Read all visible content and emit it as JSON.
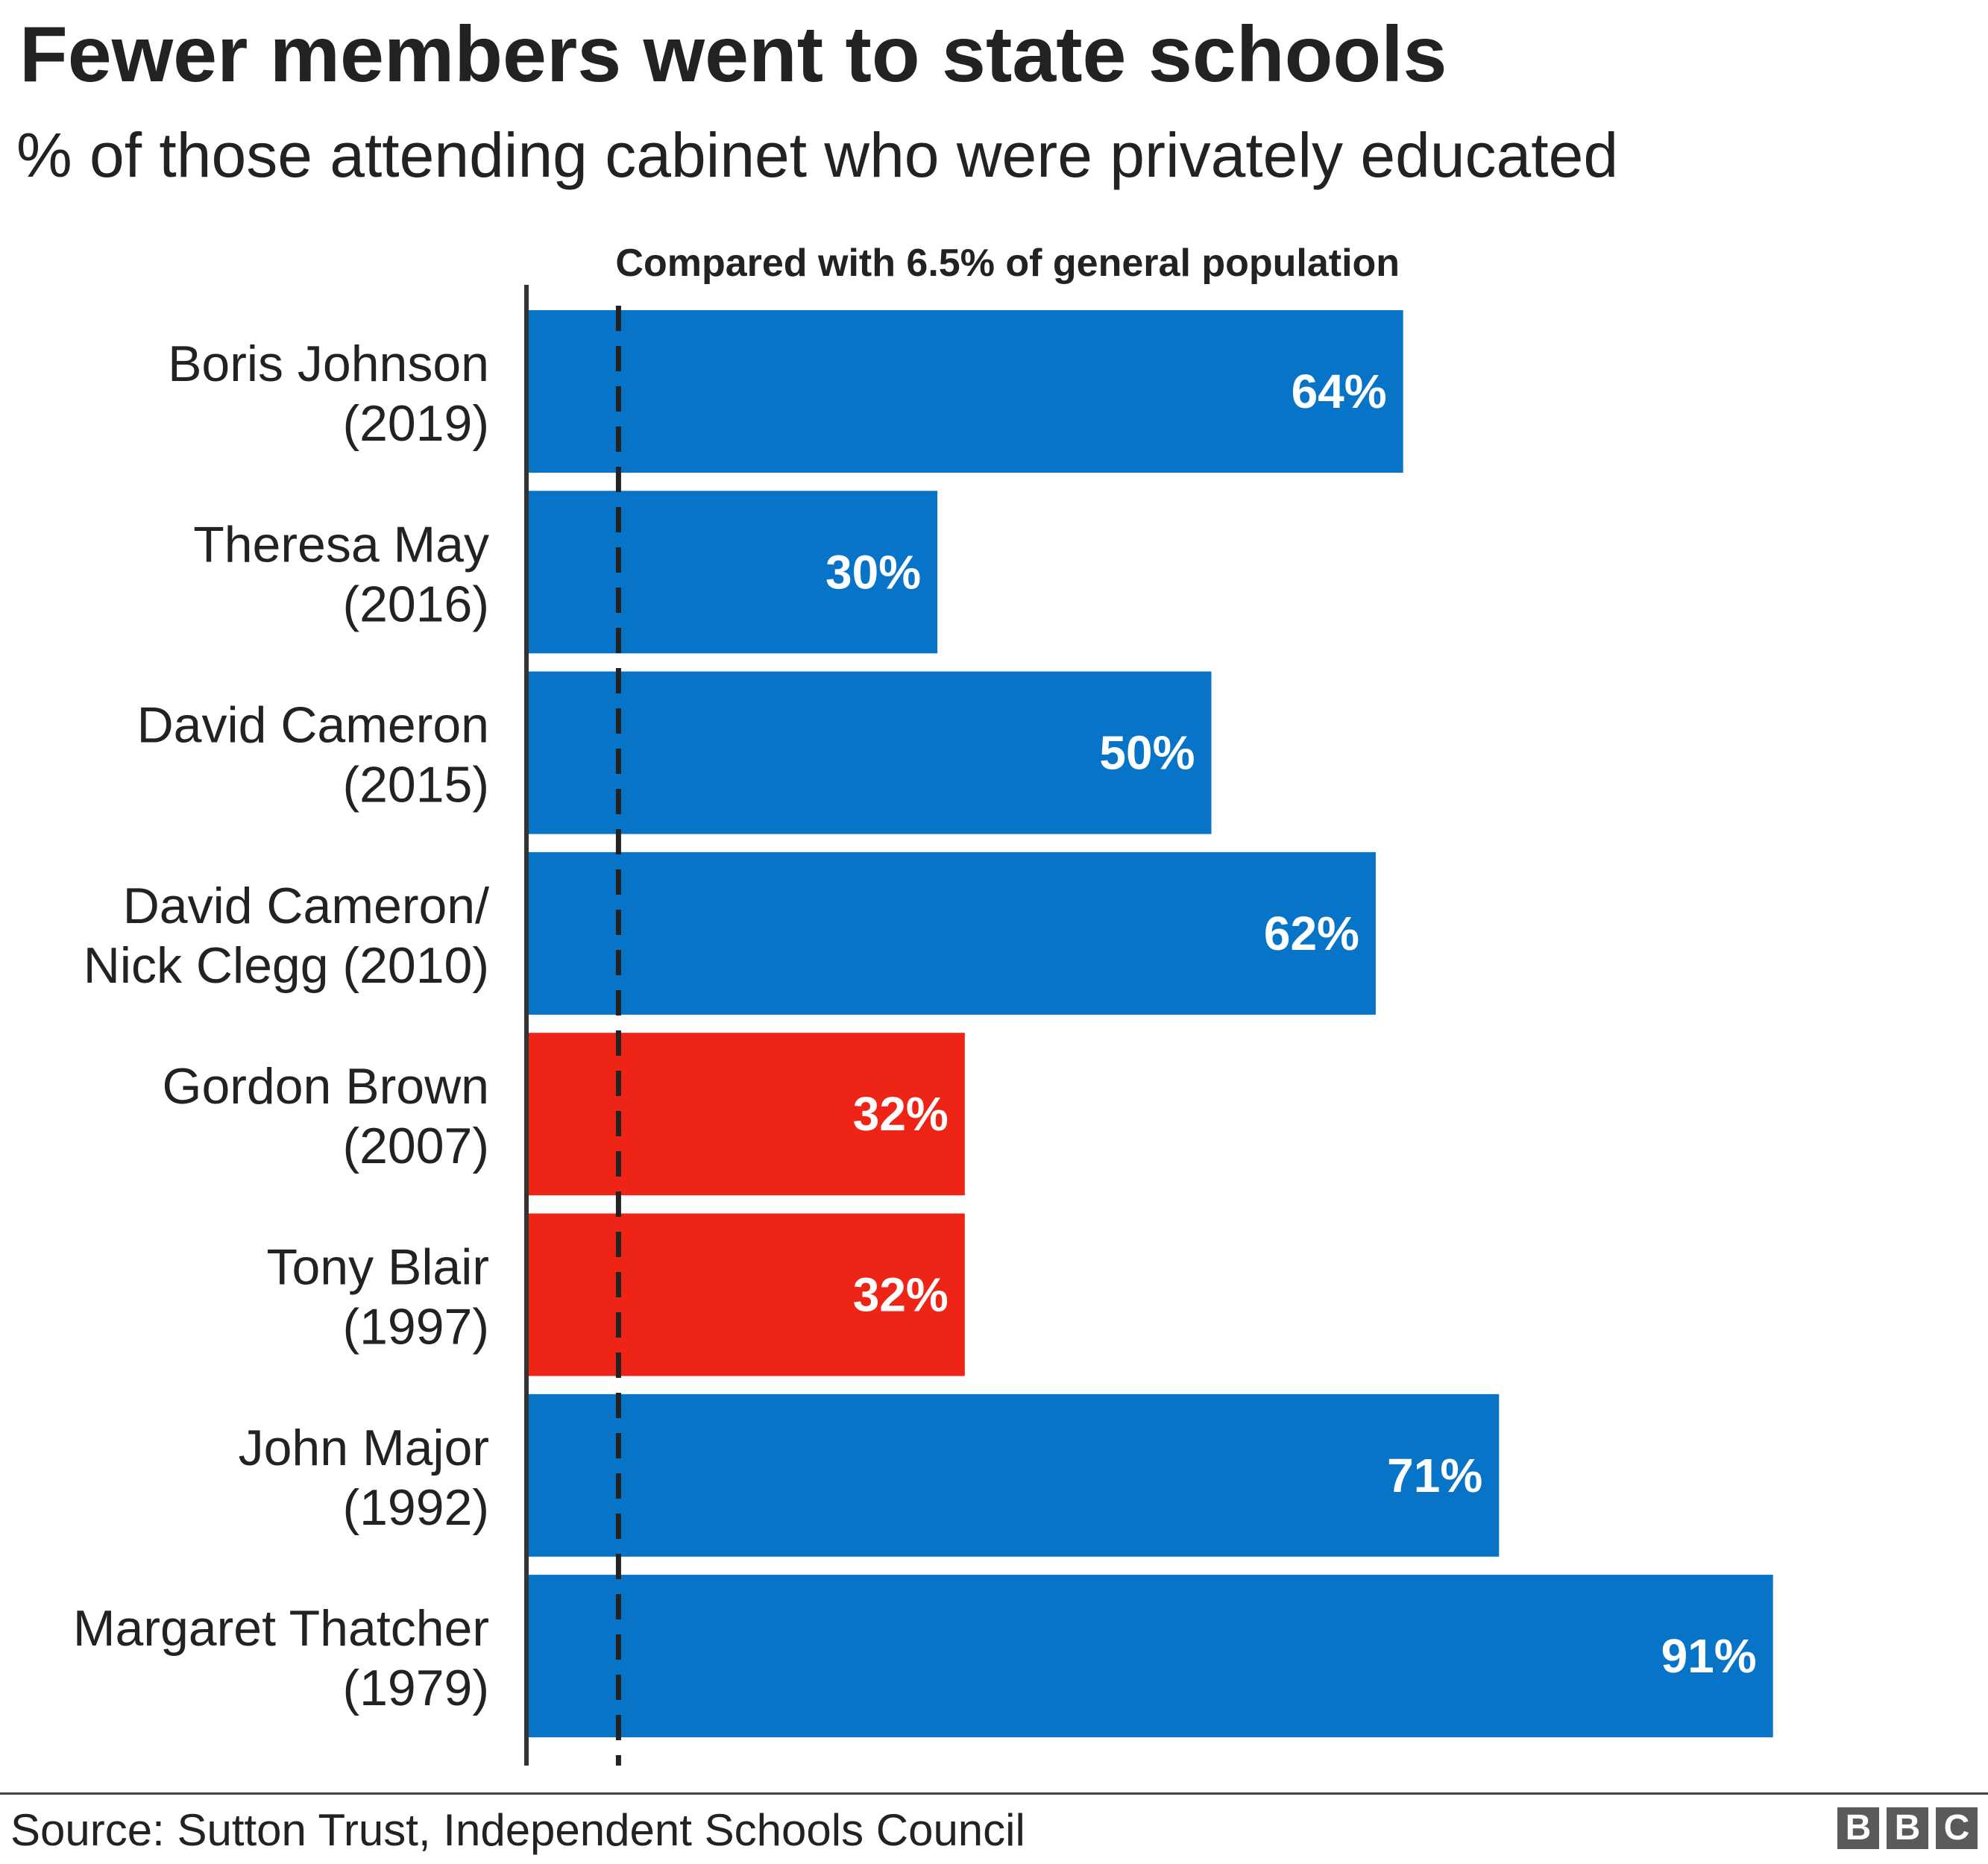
{
  "chart_data": {
    "type": "bar",
    "orientation": "horizontal",
    "title": "Fewer members went to state schools",
    "subtitle": "% of those attending cabinet who were privately educated",
    "xlim": [
      0,
      100
    ],
    "grid": false,
    "reference_line": {
      "value": 6.5,
      "label": "Compared with 6.5% of general population",
      "style": "dashed"
    },
    "categories": [
      [
        "Boris Johnson",
        "(2019)"
      ],
      [
        "Theresa May",
        "(2016)"
      ],
      [
        "David Cameron",
        "(2015)"
      ],
      [
        "David Cameron/",
        "Nick Clegg (2010)"
      ],
      [
        "Gordon Brown",
        "(2007)"
      ],
      [
        "Tony Blair",
        "(1997)"
      ],
      [
        "John Major",
        "(1992)"
      ],
      [
        "Margaret Thatcher",
        "(1979)"
      ]
    ],
    "values": [
      64,
      30,
      50,
      62,
      32,
      32,
      71,
      91
    ],
    "value_labels": [
      "64%",
      "30%",
      "50%",
      "62%",
      "32%",
      "32%",
      "71%",
      "91%"
    ],
    "bar_colors": [
      "#0874c8",
      "#0874c8",
      "#0874c8",
      "#0874c8",
      "#ee2416",
      "#ee2416",
      "#0874c8",
      "#0874c8"
    ]
  },
  "source": "Source: Sutton Trust, Independent Schools Council",
  "logo": [
    "B",
    "B",
    "C"
  ]
}
